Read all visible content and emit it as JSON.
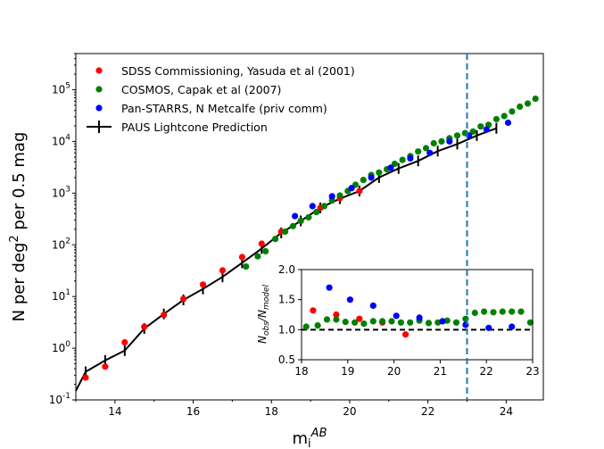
{
  "chart_data": [
    {
      "type": "scatter",
      "title": "",
      "xlabel": "m_i^AB",
      "ylabel": "N per deg^2 per 0.5 mag",
      "xlim": [
        13,
        24.95
      ],
      "ylim_log10": [
        -1,
        5.7
      ],
      "yscale": "log",
      "xticks": [
        14,
        16,
        18,
        20,
        22,
        24
      ],
      "yticks_exp": [
        -1,
        0,
        1,
        2,
        3,
        4,
        5
      ],
      "vline_x": 23,
      "legend_position": "top-left",
      "series": [
        {
          "name": "SDSS Commissioning, Yasuda et al (2001)",
          "color": "#ff0000",
          "x": [
            13.25,
            13.75,
            14.25,
            14.75,
            15.25,
            15.75,
            16.25,
            16.75,
            17.25,
            17.75,
            18.25,
            18.75,
            19.25,
            19.75,
            20.25
          ],
          "y": [
            0.27,
            0.44,
            1.3,
            2.6,
            4.4,
            9.0,
            17,
            32,
            58,
            105,
            180,
            290,
            520,
            800,
            1100
          ]
        },
        {
          "name": "COSMOS, Capak et al (2007)",
          "color": "#008000",
          "x": [
            17.35,
            17.65,
            17.85,
            18.1,
            18.35,
            18.55,
            18.75,
            18.95,
            19.15,
            19.35,
            19.55,
            19.75,
            19.95,
            20.15,
            20.35,
            20.55,
            20.75,
            20.95,
            21.15,
            21.35,
            21.55,
            21.75,
            21.95,
            22.15,
            22.35,
            22.55,
            22.75,
            22.95,
            23.15,
            23.35,
            23.55,
            23.75,
            23.95,
            24.15,
            24.35,
            24.55,
            24.75
          ],
          "y": [
            38,
            60,
            75,
            130,
            180,
            230,
            290,
            340,
            430,
            560,
            720,
            900,
            1100,
            1450,
            1800,
            2250,
            2500,
            2900,
            3700,
            4400,
            5200,
            6400,
            7400,
            9200,
            10000,
            11500,
            13000,
            14500,
            15500,
            19500,
            21000,
            27000,
            31000,
            38000,
            47000,
            54000,
            67000
          ]
        },
        {
          "name": "Pan-STARRS, N Metcalfe (priv comm)",
          "color": "#0000ff",
          "x": [
            18.6,
            19.05,
            19.55,
            20.05,
            20.55,
            21.05,
            21.55,
            22.05,
            22.55,
            23.05,
            23.5,
            24.05
          ],
          "y": [
            360,
            560,
            870,
            1250,
            2000,
            3100,
            4700,
            6000,
            10000,
            13000,
            17000,
            23000
          ]
        },
        {
          "name": "PAUS Lightcone Prediction",
          "color": "#000000",
          "kind": "line",
          "x": [
            13.0,
            13.25,
            13.75,
            14.25,
            14.75,
            15.25,
            15.75,
            16.25,
            16.75,
            17.25,
            17.75,
            18.25,
            18.75,
            19.25,
            19.75,
            20.25,
            20.75,
            21.25,
            21.75,
            22.25,
            22.75,
            23.25,
            23.75
          ],
          "y": [
            0.15,
            0.35,
            0.58,
            0.9,
            2.4,
            4.6,
            8.6,
            14,
            24,
            45,
            85,
            170,
            290,
            520,
            780,
            1100,
            2000,
            3000,
            4200,
            6500,
            8900,
            13000,
            18000
          ]
        }
      ]
    },
    {
      "type": "scatter",
      "title": "",
      "xlabel": "",
      "ylabel": "N_obs/N_model",
      "xlim": [
        18,
        23
      ],
      "ylim": [
        0.5,
        2.0
      ],
      "xticks": [
        18,
        19,
        20,
        21,
        22,
        23
      ],
      "yticks": [
        "0.5",
        "1.0",
        "1.5",
        "2.0"
      ],
      "hline_y": 1.0,
      "series": [
        {
          "name": "SDSS Commissioning, Yasuda et al (2001)",
          "color": "#ff0000",
          "x": [
            18.25,
            18.75,
            19.25,
            19.75,
            20.25
          ],
          "y": [
            1.32,
            1.25,
            1.18,
            1.12,
            0.92
          ]
        },
        {
          "name": "COSMOS, Capak et al (2007)",
          "color": "#008000",
          "x": [
            18.1,
            18.35,
            18.55,
            18.75,
            18.95,
            19.15,
            19.35,
            19.55,
            19.75,
            19.95,
            20.15,
            20.35,
            20.55,
            20.75,
            20.95,
            21.15,
            21.35,
            21.55,
            21.75,
            21.95,
            22.15,
            22.35,
            22.55,
            22.75,
            22.95
          ],
          "y": [
            1.05,
            1.07,
            1.17,
            1.17,
            1.13,
            1.12,
            1.1,
            1.14,
            1.14,
            1.14,
            1.12,
            1.12,
            1.15,
            1.11,
            1.12,
            1.15,
            1.12,
            1.18,
            1.28,
            1.3,
            1.29,
            1.3,
            1.3,
            1.3,
            1.12
          ]
        },
        {
          "name": "Pan-STARRS, N Metcalfe (priv comm)",
          "color": "#0000ff",
          "x": [
            18.6,
            19.05,
            19.55,
            20.05,
            20.55,
            21.05,
            21.55,
            22.05,
            22.55
          ],
          "y": [
            1.7,
            1.5,
            1.4,
            1.23,
            1.2,
            1.14,
            1.08,
            1.03,
            1.05
          ]
        }
      ]
    }
  ]
}
